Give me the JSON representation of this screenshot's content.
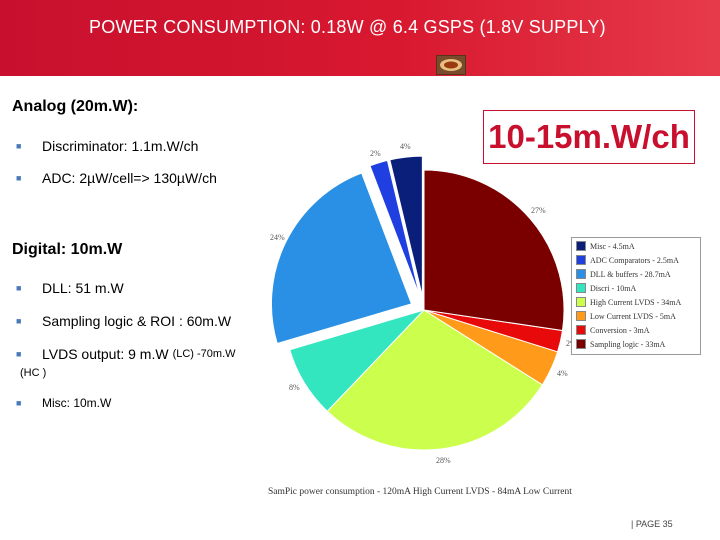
{
  "header": {
    "title": "POWER CONSUMPTION: 0.18W @ 6.4 GSPS (1.8V SUPPLY)",
    "logo_icon": "logo-icon"
  },
  "analog": {
    "title": "Analog (20m.W):",
    "items": [
      "Discriminator: 1.1m.W/ch",
      "ADC: 2µW/cell=> 130µW/ch"
    ]
  },
  "highlight": "10-15m.W/ch",
  "digital": {
    "title": "Digital: 10m.W",
    "items": [
      "DLL: 51 m.W",
      "Sampling logic & ROI : 60m.W",
      "LVDS output: 9 m.W"
    ],
    "lvds_suffix": "(LC) -70m.W",
    "lvds_cont": "(HC )",
    "misc": "Misc: 10m.W"
  },
  "chart_data": {
    "type": "pie",
    "categories": [
      "Misc - 4.5mA",
      "ADC Comparators - 2.5mA",
      "DLL & buffers - 28.7mA",
      "Discri - 10mA",
      "High Current LVDS - 34mA",
      "Low Current LVDS - 5mA",
      "Conversion - 3mA",
      "Sampling logic - 33mA"
    ],
    "values": [
      4.5,
      2.5,
      28.7,
      10,
      34,
      5,
      3,
      33
    ],
    "percent_labels": [
      "4%",
      "2%",
      "24%",
      "8%",
      "28%",
      "4%",
      "2%",
      "27%"
    ],
    "colors": [
      "#0a1f7a",
      "#1f3fe0",
      "#2990e6",
      "#33e6c0",
      "#ccff4d",
      "#ff9a1a",
      "#e80a0a",
      "#7a0000"
    ],
    "caption": "SamPic power consumption - 120mA High Current LVDS - 84mA Low Current",
    "legend_position": "right",
    "exploded": [
      true,
      true,
      true,
      false,
      false,
      false,
      false,
      false
    ]
  },
  "footer": "| PAGE 35"
}
